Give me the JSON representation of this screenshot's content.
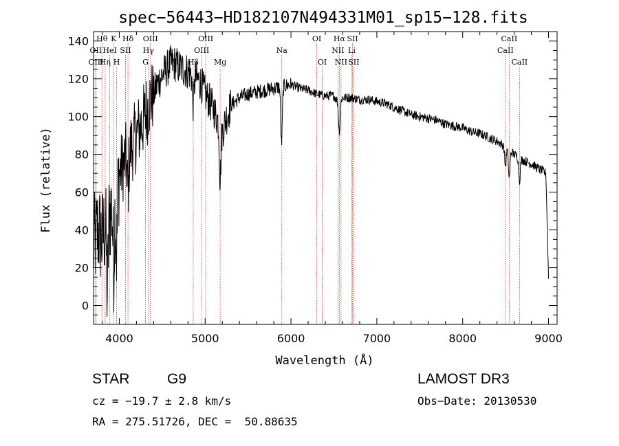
{
  "chart_data": {
    "type": "line",
    "title": "spec−56443−HD182107N494331M01_sp15−128.fits",
    "xlabel": "Wavelength (Å)",
    "ylabel": "Flux (relative)",
    "xlim": [
      3700,
      9100
    ],
    "ylim": [
      -10,
      145
    ],
    "xticks": [
      4000,
      5000,
      6000,
      7000,
      8000,
      9000
    ],
    "yticks": [
      0,
      20,
      40,
      60,
      80,
      100,
      120,
      140
    ],
    "spectrum_anchors": {
      "x": [
        3700,
        3750,
        3800,
        3850,
        3900,
        3950,
        4000,
        4050,
        4100,
        4150,
        4200,
        4250,
        4300,
        4350,
        4400,
        4450,
        4500,
        4550,
        4600,
        4650,
        4700,
        4750,
        4800,
        4850,
        4900,
        4950,
        5000,
        5050,
        5100,
        5150,
        5200,
        5250,
        5300,
        5400,
        5500,
        5600,
        5700,
        5800,
        5900,
        6000,
        6100,
        6200,
        6300,
        6400,
        6500,
        6560,
        6600,
        6700,
        6800,
        6900,
        7000,
        7100,
        7200,
        7300,
        7400,
        7500,
        7600,
        7700,
        7800,
        7900,
        8000,
        8100,
        8200,
        8300,
        8400,
        8500,
        8600,
        8700,
        8800,
        8900,
        8970,
        9000
      ],
      "y": [
        30,
        40,
        35,
        45,
        50,
        60,
        70,
        75,
        80,
        85,
        90,
        95,
        100,
        108,
        112,
        118,
        122,
        125,
        128,
        128,
        126,
        125,
        124,
        122,
        120,
        118,
        112,
        108,
        104,
        98,
        92,
        100,
        106,
        110,
        112,
        113,
        114,
        115,
        116,
        117,
        115,
        114,
        112,
        111,
        111,
        107,
        110,
        110,
        109,
        109,
        108,
        107,
        105,
        103,
        101,
        100,
        99,
        98,
        96,
        95,
        94,
        92,
        91,
        89,
        87,
        84,
        80,
        77,
        75,
        72,
        70,
        15
      ]
    },
    "absorption_features": {
      "wavelengths": [
        3860,
        3934,
        3969,
        4101,
        4861,
        5175,
        5890,
        6563,
        8498,
        8542,
        8662
      ],
      "depths": [
        40,
        35,
        35,
        20,
        15,
        28,
        30,
        15,
        10,
        15,
        12
      ]
    },
    "lines": [
      {
        "label": "Hθ",
        "wl": 3798,
        "row": 0
      },
      {
        "label": "OII",
        "wl": 3727,
        "row": 1
      },
      {
        "label": "OIII",
        "wl": 3727,
        "row": 2
      },
      {
        "label": "K",
        "wl": 3934,
        "row": 0
      },
      {
        "label": "HeI",
        "wl": 3889,
        "row": 1
      },
      {
        "label": "Hη",
        "wl": 3835,
        "row": 2
      },
      {
        "label": "Hδ",
        "wl": 4101,
        "row": 0
      },
      {
        "label": "SII",
        "wl": 4072,
        "row": 1
      },
      {
        "label": "H",
        "wl": 3969,
        "row": 2
      },
      {
        "label": "OIII",
        "wl": 4363,
        "row": 0
      },
      {
        "label": "Hγ",
        "wl": 4340,
        "row": 1
      },
      {
        "label": "G",
        "wl": 4305,
        "row": 2
      },
      {
        "label": "OIII",
        "wl": 5007,
        "row": 0
      },
      {
        "label": "OIII",
        "wl": 4959,
        "row": 1
      },
      {
        "label": "Hβ",
        "wl": 4861,
        "row": 2
      },
      {
        "label": "Mg",
        "wl": 5175,
        "row": 2
      },
      {
        "label": "Na",
        "wl": 5893,
        "row": 1
      },
      {
        "label": "OI",
        "wl": 6300,
        "row": 0
      },
      {
        "label": "OI",
        "wl": 6364,
        "row": 2
      },
      {
        "label": "Hα",
        "wl": 6563,
        "row": 0
      },
      {
        "label": "SII",
        "wl": 6716,
        "row": 0
      },
      {
        "label": "NII",
        "wl": 6548,
        "row": 1
      },
      {
        "label": "Li",
        "wl": 6708,
        "row": 1
      },
      {
        "label": "NII",
        "wl": 6583,
        "row": 2
      },
      {
        "label": "SII",
        "wl": 6731,
        "row": 2
      },
      {
        "label": "CaII",
        "wl": 8542,
        "row": 0
      },
      {
        "label": "CaII",
        "wl": 8498,
        "row": 1
      },
      {
        "label": "CaII",
        "wl": 8662,
        "row": 2
      }
    ],
    "colors": {
      "spectrum": "#000000",
      "line_markers": "#c0392b",
      "axes": "#000000"
    }
  },
  "info": {
    "object_class": "STAR",
    "subclass": "G9",
    "survey": "LAMOST DR3",
    "velocity": "cz = −19.7 ± 2.8 km/s",
    "obs_date": "Obs−Date: 20130530",
    "coords": "RA = 275.51726, DEC =  50.88635"
  }
}
